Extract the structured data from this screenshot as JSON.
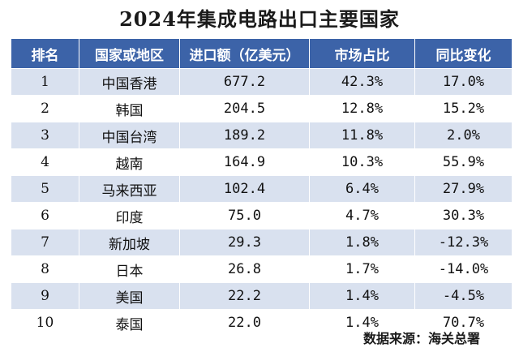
{
  "title": "2024年集成电路出口主要国家",
  "headers": [
    "排名",
    "国家或地区",
    "进口额（亿美元）",
    "市场占比",
    "同比变化"
  ],
  "rows": [
    {
      "rank": "1",
      "country": "中国香港",
      "amount": "677.2",
      "share": "42.3%",
      "change": "17.0%"
    },
    {
      "rank": "2",
      "country": "韩国",
      "amount": "204.5",
      "share": "12.8%",
      "change": "15.2%"
    },
    {
      "rank": "3",
      "country": "中国台湾",
      "amount": "189.2",
      "share": "11.8%",
      "change": "2.0%"
    },
    {
      "rank": "4",
      "country": "越南",
      "amount": "164.9",
      "share": "10.3%",
      "change": "55.9%"
    },
    {
      "rank": "5",
      "country": "马来西亚",
      "amount": "102.4",
      "share": "6.4%",
      "change": "27.9%"
    },
    {
      "rank": "6",
      "country": "印度",
      "amount": "75.0",
      "share": "4.7%",
      "change": "30.3%"
    },
    {
      "rank": "7",
      "country": "新加坡",
      "amount": "29.3",
      "share": "1.8%",
      "change": "-12.3%"
    },
    {
      "rank": "8",
      "country": "日本",
      "amount": "26.8",
      "share": "1.7%",
      "change": "-14.0%"
    },
    {
      "rank": "9",
      "country": "美国",
      "amount": "22.2",
      "share": "1.4%",
      "change": "-4.5%"
    },
    {
      "rank": "10",
      "country": "泰国",
      "amount": "22.0",
      "share": "1.4%",
      "change": "70.7%"
    }
  ],
  "source": "数据来源：海关总署",
  "colors": {
    "header_bg": "#3c63a8",
    "stripe": "#d9e1ef"
  }
}
